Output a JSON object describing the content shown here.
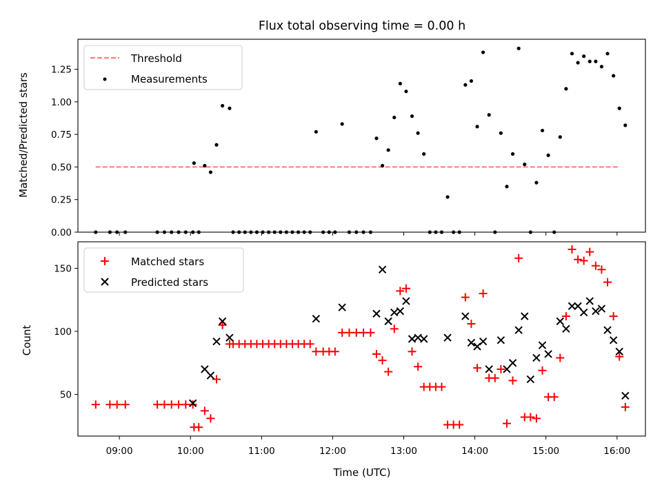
{
  "chart_data": [
    {
      "type": "scatter",
      "title": "Flux total observing time = 0.00 h",
      "xlabel": "",
      "ylabel": "Matched/Predicted stars",
      "xlim": [
        "08:25",
        "16:24"
      ],
      "ylim": [
        0,
        1.48
      ],
      "y_ticks": [
        "0.00",
        "0.25",
        "0.50",
        "0.75",
        "1.00",
        "1.25"
      ],
      "x_ticks": [
        "09:00",
        "10:00",
        "11:00",
        "12:00",
        "13:00",
        "14:00",
        "15:00",
        "16:00"
      ],
      "legend": {
        "placement": "top-left",
        "entries": [
          "Threshold",
          "Measurements"
        ]
      },
      "threshold": {
        "name": "Threshold",
        "value": 0.5,
        "x_range": [
          "08:40",
          "16:02"
        ],
        "color": "#ff7777",
        "style": "dashed"
      },
      "series": [
        {
          "name": "Measurements",
          "color": "#000000",
          "marker": "dot",
          "points": [
            [
              "08:40",
              0
            ],
            [
              "08:52",
              0
            ],
            [
              "08:58",
              0
            ],
            [
              "09:05",
              0
            ],
            [
              "09:32",
              0
            ],
            [
              "09:38",
              0
            ],
            [
              "09:44",
              0
            ],
            [
              "09:50",
              0
            ],
            [
              "09:56",
              0
            ],
            [
              "10:02",
              0
            ],
            [
              "10:03",
              0.53
            ],
            [
              "10:07",
              0
            ],
            [
              "10:12",
              0.51
            ],
            [
              "10:17",
              0.46
            ],
            [
              "10:22",
              0.67
            ],
            [
              "10:27",
              0.97
            ],
            [
              "10:33",
              0.95
            ],
            [
              "10:36",
              0
            ],
            [
              "10:41",
              0
            ],
            [
              "10:46",
              0
            ],
            [
              "10:51",
              0
            ],
            [
              "10:56",
              0
            ],
            [
              "11:01",
              0
            ],
            [
              "11:06",
              0
            ],
            [
              "11:11",
              0
            ],
            [
              "11:16",
              0
            ],
            [
              "11:21",
              0
            ],
            [
              "11:26",
              0
            ],
            [
              "11:31",
              0
            ],
            [
              "11:36",
              0
            ],
            [
              "11:41",
              0
            ],
            [
              "11:46",
              0.77
            ],
            [
              "11:52",
              0
            ],
            [
              "11:57",
              0
            ],
            [
              "12:02",
              0
            ],
            [
              "12:08",
              0.83
            ],
            [
              "12:14",
              0
            ],
            [
              "12:20",
              0
            ],
            [
              "12:26",
              0
            ],
            [
              "12:32",
              0
            ],
            [
              "12:37",
              0.72
            ],
            [
              "12:42",
              0.51
            ],
            [
              "12:47",
              0.63
            ],
            [
              "12:52",
              0.88
            ],
            [
              "12:57",
              1.14
            ],
            [
              "13:02",
              1.08
            ],
            [
              "13:07",
              0.89
            ],
            [
              "13:12",
              0.76
            ],
            [
              "13:17",
              0.6
            ],
            [
              "13:22",
              0
            ],
            [
              "13:27",
              0
            ],
            [
              "13:32",
              0
            ],
            [
              "13:37",
              0.27
            ],
            [
              "13:42",
              0
            ],
            [
              "13:47",
              0
            ],
            [
              "13:52",
              1.13
            ],
            [
              "13:57",
              1.16
            ],
            [
              "14:02",
              0.81
            ],
            [
              "14:07",
              1.38
            ],
            [
              "14:12",
              0.9
            ],
            [
              "14:17",
              0
            ],
            [
              "14:22",
              0.76
            ],
            [
              "14:27",
              0.35
            ],
            [
              "14:32",
              0.6
            ],
            [
              "14:37",
              1.41
            ],
            [
              "14:42",
              0.52
            ],
            [
              "14:47",
              0
            ],
            [
              "14:52",
              0.38
            ],
            [
              "14:57",
              0.78
            ],
            [
              "15:02",
              0.59
            ],
            [
              "15:07",
              0
            ],
            [
              "15:12",
              0.73
            ],
            [
              "15:17",
              1.1
            ],
            [
              "15:22",
              1.37
            ],
            [
              "15:27",
              1.3
            ],
            [
              "15:32",
              1.35
            ],
            [
              "15:37",
              1.31
            ],
            [
              "15:42",
              1.31
            ],
            [
              "15:47",
              1.27
            ],
            [
              "15:52",
              1.37
            ],
            [
              "15:57",
              1.2
            ],
            [
              "16:02",
              0.95
            ],
            [
              "16:07",
              0.82
            ]
          ]
        }
      ]
    },
    {
      "type": "scatter",
      "title": "",
      "xlabel": "Time (UTC)",
      "ylabel": "Count",
      "xlim": [
        "08:25",
        "16:24"
      ],
      "ylim": [
        17,
        171
      ],
      "y_ticks": [
        "50",
        "100",
        "150"
      ],
      "x_ticks": [
        "09:00",
        "10:00",
        "11:00",
        "12:00",
        "13:00",
        "14:00",
        "15:00",
        "16:00"
      ],
      "legend": {
        "placement": "top-left",
        "entries": [
          "Matched stars",
          "Predicted stars"
        ]
      },
      "series": [
        {
          "name": "Matched stars",
          "color": "#ff0000",
          "marker": "plus",
          "points": [
            [
              "08:40",
              42
            ],
            [
              "08:52",
              42
            ],
            [
              "08:58",
              42
            ],
            [
              "09:05",
              42
            ],
            [
              "09:32",
              42
            ],
            [
              "09:38",
              42
            ],
            [
              "09:44",
              42
            ],
            [
              "09:50",
              42
            ],
            [
              "09:56",
              42
            ],
            [
              "10:02",
              42
            ],
            [
              "10:03",
              24
            ],
            [
              "10:07",
              24
            ],
            [
              "10:12",
              37
            ],
            [
              "10:17",
              31
            ],
            [
              "10:22",
              62
            ],
            [
              "10:27",
              105
            ],
            [
              "10:33",
              90
            ],
            [
              "10:36",
              90
            ],
            [
              "10:41",
              90
            ],
            [
              "10:46",
              90
            ],
            [
              "10:51",
              90
            ],
            [
              "10:56",
              90
            ],
            [
              "11:01",
              90
            ],
            [
              "11:06",
              90
            ],
            [
              "11:11",
              90
            ],
            [
              "11:16",
              90
            ],
            [
              "11:21",
              90
            ],
            [
              "11:26",
              90
            ],
            [
              "11:31",
              90
            ],
            [
              "11:36",
              90
            ],
            [
              "11:41",
              90
            ],
            [
              "11:46",
              84
            ],
            [
              "11:52",
              84
            ],
            [
              "11:57",
              84
            ],
            [
              "12:02",
              84
            ],
            [
              "12:08",
              99
            ],
            [
              "12:14",
              99
            ],
            [
              "12:20",
              99
            ],
            [
              "12:26",
              99
            ],
            [
              "12:32",
              99
            ],
            [
              "12:37",
              82
            ],
            [
              "12:42",
              77
            ],
            [
              "12:47",
              68
            ],
            [
              "12:52",
              102
            ],
            [
              "12:57",
              132
            ],
            [
              "13:02",
              134
            ],
            [
              "13:07",
              84
            ],
            [
              "13:12",
              72
            ],
            [
              "13:17",
              56
            ],
            [
              "13:22",
              56
            ],
            [
              "13:27",
              56
            ],
            [
              "13:32",
              56
            ],
            [
              "13:37",
              26
            ],
            [
              "13:42",
              26
            ],
            [
              "13:47",
              26
            ],
            [
              "13:52",
              127
            ],
            [
              "13:57",
              106
            ],
            [
              "14:02",
              71
            ],
            [
              "14:07",
              130
            ],
            [
              "14:12",
              63
            ],
            [
              "14:17",
              63
            ],
            [
              "14:22",
              70
            ],
            [
              "14:27",
              27
            ],
            [
              "14:32",
              61
            ],
            [
              "14:37",
              158
            ],
            [
              "14:42",
              32
            ],
            [
              "14:47",
              32
            ],
            [
              "14:52",
              31
            ],
            [
              "14:57",
              69
            ],
            [
              "15:02",
              48
            ],
            [
              "15:07",
              48
            ],
            [
              "15:12",
              79
            ],
            [
              "15:17",
              112
            ],
            [
              "15:22",
              165
            ],
            [
              "15:27",
              157
            ],
            [
              "15:32",
              156
            ],
            [
              "15:37",
              163
            ],
            [
              "15:42",
              152
            ],
            [
              "15:47",
              149
            ],
            [
              "15:52",
              139
            ],
            [
              "15:57",
              112
            ],
            [
              "16:02",
              80
            ],
            [
              "16:07",
              40
            ]
          ]
        },
        {
          "name": "Predicted stars",
          "color": "#000000",
          "marker": "x",
          "points": [
            [
              "10:02",
              43
            ],
            [
              "10:12",
              70
            ],
            [
              "10:17",
              65
            ],
            [
              "10:22",
              92
            ],
            [
              "10:27",
              108
            ],
            [
              "10:33",
              95
            ],
            [
              "11:46",
              110
            ],
            [
              "12:08",
              119
            ],
            [
              "12:37",
              114
            ],
            [
              "12:42",
              149
            ],
            [
              "12:47",
              108
            ],
            [
              "12:52",
              115
            ],
            [
              "12:57",
              116
            ],
            [
              "13:02",
              124
            ],
            [
              "13:07",
              94
            ],
            [
              "13:12",
              95
            ],
            [
              "13:17",
              94
            ],
            [
              "13:37",
              95
            ],
            [
              "13:52",
              112
            ],
            [
              "13:57",
              91
            ],
            [
              "14:02",
              88
            ],
            [
              "14:07",
              92
            ],
            [
              "14:12",
              70
            ],
            [
              "14:22",
              93
            ],
            [
              "14:27",
              70
            ],
            [
              "14:32",
              75
            ],
            [
              "14:37",
              101
            ],
            [
              "14:42",
              112
            ],
            [
              "14:47",
              62
            ],
            [
              "14:52",
              79
            ],
            [
              "14:57",
              89
            ],
            [
              "15:02",
              82
            ],
            [
              "15:12",
              108
            ],
            [
              "15:17",
              102
            ],
            [
              "15:22",
              120
            ],
            [
              "15:27",
              120
            ],
            [
              "15:32",
              115
            ],
            [
              "15:37",
              124
            ],
            [
              "15:42",
              116
            ],
            [
              "15:47",
              118
            ],
            [
              "15:52",
              101
            ],
            [
              "15:57",
              93
            ],
            [
              "16:02",
              84
            ],
            [
              "16:07",
              49
            ]
          ]
        }
      ]
    }
  ]
}
